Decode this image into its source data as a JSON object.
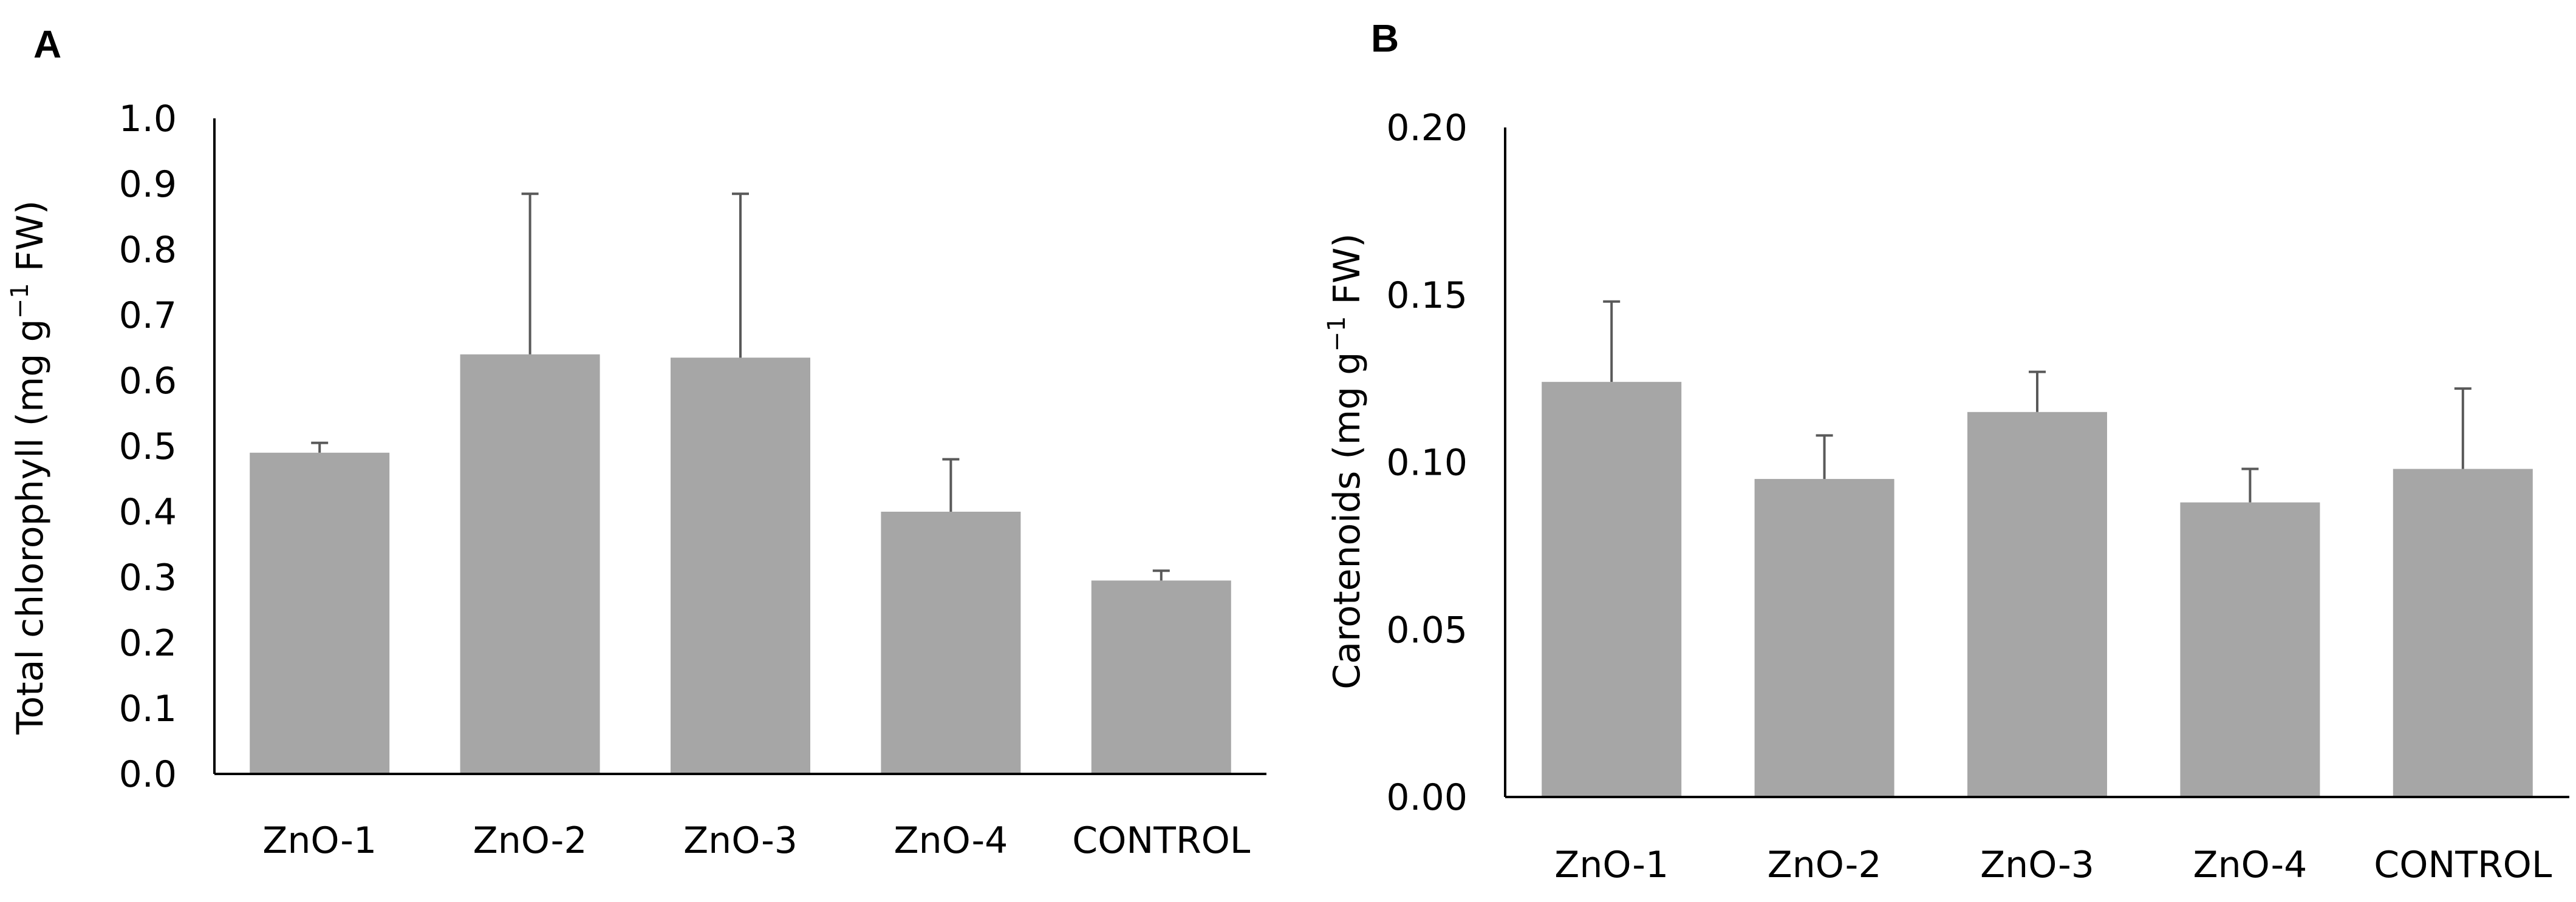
{
  "colors": {
    "bar": "#a6a6a6",
    "error_bar": "#595959",
    "axis": "#000000",
    "text": "#000000"
  },
  "chart_data": [
    {
      "type": "bar",
      "panel_label": "A",
      "categories": [
        "ZnO-1",
        "ZnO-2",
        "ZnO-3",
        "ZnO-4",
        "CONTROL"
      ],
      "values": [
        0.49,
        0.64,
        0.635,
        0.4,
        0.295
      ],
      "errors": [
        0.015,
        0.245,
        0.25,
        0.08,
        0.015
      ],
      "ylabel": {
        "main": "Total chlorophyll (mg g",
        "sup": "−1",
        "tail": " FW)"
      },
      "ylim": [
        0.0,
        1.0
      ],
      "yticks": [
        0.0,
        0.1,
        0.2,
        0.3,
        0.4,
        0.5,
        0.6,
        0.7,
        0.8,
        0.9,
        1.0
      ],
      "ytick_labels": [
        "0.0",
        "0.1",
        "0.2",
        "0.3",
        "0.4",
        "0.5",
        "0.6",
        "0.7",
        "0.8",
        "0.9",
        "1.0"
      ],
      "grid": false,
      "legend": "none"
    },
    {
      "type": "bar",
      "panel_label": "B",
      "categories": [
        "ZnO-1",
        "ZnO-2",
        "ZnO-3",
        "ZnO-4",
        "CONTROL"
      ],
      "values": [
        0.124,
        0.095,
        0.115,
        0.088,
        0.098
      ],
      "errors": [
        0.024,
        0.013,
        0.012,
        0.01,
        0.024
      ],
      "ylabel": {
        "main": "Carotenoids (mg g",
        "sup": "−1",
        "tail": " FW)"
      },
      "ylim": [
        0.0,
        0.2
      ],
      "yticks": [
        0.0,
        0.05,
        0.1,
        0.15,
        0.2
      ],
      "ytick_labels": [
        "0.00",
        "0.05",
        "0.10",
        "0.15",
        "0.20"
      ],
      "grid": false,
      "legend": "none"
    }
  ]
}
